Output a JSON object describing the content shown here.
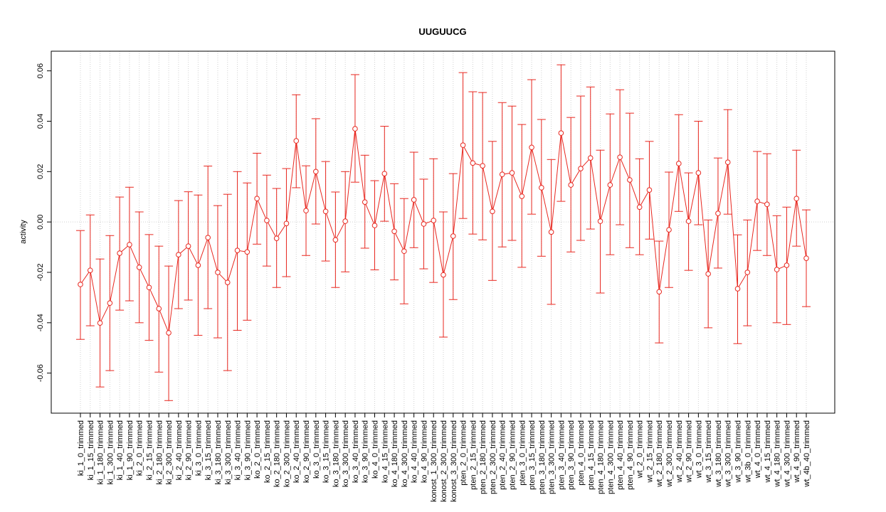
{
  "chart_data": {
    "type": "errorline",
    "title": "UUGUUCG",
    "y_label": "activity",
    "categories": [
      "ki_1_0_trimmed",
      "ki_1_15_trimmed",
      "ki_1_180_trimmed",
      "ki_1_300_trimmed",
      "ki_1_40_trimmed",
      "ki_1_90_trimmed",
      "ki_2_0_trimmed",
      "ki_2_15_trimmed",
      "ki_2_180_trimmed",
      "ki_2_300_trimmed",
      "ki_2_40_trimmed",
      "ki_2_90_trimmed",
      "ki_3_0_trimmed",
      "ki_3_15_trimmed",
      "ki_3_180_trimmed",
      "ki_3_300_trimmed",
      "ki_3_40_trimmed",
      "ki_3_90_trimmed",
      "ko_2_0_trimmed",
      "ko_2_15_trimmed",
      "ko_2_180_trimmed",
      "ko_2_300_trimmed",
      "ko_2_40_trimmed",
      "ko_2_90_trimmed",
      "ko_3_0_trimmed",
      "ko_3_15_trimmed",
      "ko_3_180_trimmed",
      "ko_3_300_trimmed",
      "ko_3_40_trimmed",
      "ko_3_90_trimmed",
      "ko_4_0_trimmed",
      "ko_4_15_trimmed",
      "ko_4_180_trimmed",
      "ko_4_300_trimmed",
      "ko_4_40_trimmed",
      "ko_4_90_trimmed",
      "konost_1_300_trimmed",
      "konost_2_300_trimmed",
      "konost_3_300_trimmed",
      "pten_2_0_trimmed",
      "pten_2_15_trimmed",
      "pten_2_180_trimmed",
      "pten_2_300_trimmed",
      "pten_2_40_trimmed",
      "pten_2_90_trimmed",
      "pten_3_0_trimmed",
      "pten_3_15_trimmed",
      "pten_3_180_trimmed",
      "pten_3_300_trimmed",
      "pten_3_40_trimmed",
      "pten_3_90_trimmed",
      "pten_4_0_trimmed",
      "pten_4_15_trimmed",
      "pten_4_180_trimmed",
      "pten_4_300_trimmed",
      "pten_4_40_trimmed",
      "pten_4_90_trimmed",
      "wt_2_0_trimmed",
      "wt_2_15_trimmed",
      "wt_2_180_trimmed",
      "wt_2_300_trimmed",
      "wt_2_40_trimmed",
      "wt_2_90_trimmed",
      "wt_3_0_trimmed",
      "wt_3_15_trimmed",
      "wt_3_180_trimmed",
      "wt_3_300_trimmed",
      "wt_3_90_trimmed",
      "wt_3b_0_trimmed",
      "wt_4_0_trimmed",
      "wt_4_15_trimmed",
      "wt_4_180_trimmed",
      "wt_4_300_trimmed",
      "wt_4_90_trimmed",
      "wt_4b_40_trimmed"
    ],
    "color": "#e8271f",
    "values": [
      -0.0248,
      -0.0192,
      -0.0401,
      -0.0322,
      -0.0124,
      -0.009,
      -0.018,
      -0.026,
      -0.0344,
      -0.044,
      -0.013,
      -0.0096,
      -0.0172,
      -0.0062,
      -0.02,
      -0.024,
      -0.0113,
      -0.0119,
      0.0093,
      0.0006,
      -0.0065,
      -0.0006,
      0.0322,
      0.0045,
      0.02,
      0.0042,
      -0.0071,
      0.0003,
      0.037,
      0.0079,
      -0.0014,
      0.0192,
      -0.0037,
      -0.0116,
      0.0088,
      -0.0008,
      0.0006,
      -0.021,
      -0.0056,
      0.0305,
      0.0234,
      0.0223,
      0.0042,
      0.0189,
      0.0195,
      0.0102,
      0.0296,
      0.0136,
      -0.004,
      0.0353,
      0.0147,
      0.0212,
      0.0254,
      0.0003,
      0.0147,
      0.0257,
      0.0167,
      0.0059,
      0.0127,
      -0.0277,
      -0.0031,
      0.0232,
      0.0003,
      0.0195,
      -0.0206,
      0.0034,
      0.0237,
      -0.0265,
      -0.02,
      0.0082,
      0.007,
      -0.0189,
      -0.0172,
      0.0093,
      -0.0144
    ],
    "upper": [
      -0.0034,
      0.0028,
      -0.0147,
      -0.0054,
      0.0099,
      0.0138,
      0.004,
      -0.005,
      -0.0096,
      -0.0175,
      0.0085,
      0.012,
      0.0107,
      0.0222,
      0.0065,
      0.011,
      0.02,
      0.0155,
      0.0273,
      0.0186,
      0.0133,
      0.0212,
      0.0505,
      0.0223,
      0.041,
      0.024,
      0.0119,
      0.02,
      0.0585,
      0.0265,
      0.0164,
      0.038,
      0.0152,
      0.0093,
      0.0277,
      0.017,
      0.0251,
      0.004,
      0.0192,
      0.0593,
      0.0517,
      0.0514,
      0.032,
      0.0474,
      0.046,
      0.0387,
      0.0565,
      0.0407,
      0.0248,
      0.0624,
      0.0415,
      0.05,
      0.0536,
      0.0285,
      0.0429,
      0.0525,
      0.0432,
      0.0251,
      0.032,
      -0.0076,
      0.0198,
      0.0426,
      0.0195,
      0.04,
      0.0008,
      0.0254,
      0.0446,
      -0.0051,
      0.0008,
      0.028,
      0.0271,
      0.0025,
      0.0059,
      0.0285,
      0.0048
    ],
    "lower": [
      -0.0466,
      -0.0412,
      -0.0655,
      -0.059,
      -0.035,
      -0.0313,
      -0.04,
      -0.047,
      -0.0596,
      -0.0709,
      -0.0344,
      -0.031,
      -0.045,
      -0.0344,
      -0.046,
      -0.059,
      -0.043,
      -0.039,
      -0.0088,
      -0.0175,
      -0.026,
      -0.0217,
      0.0136,
      -0.0133,
      -0.0008,
      -0.0155,
      -0.026,
      -0.0198,
      0.0158,
      -0.0104,
      -0.019,
      0.0003,
      -0.023,
      -0.0325,
      -0.0102,
      -0.0186,
      -0.024,
      -0.0457,
      -0.0308,
      0.0014,
      -0.0048,
      -0.0071,
      -0.0232,
      -0.0099,
      -0.0073,
      -0.018,
      0.0031,
      -0.0136,
      -0.0327,
      0.0082,
      -0.0119,
      -0.0073,
      -0.0028,
      -0.0282,
      -0.013,
      -0.0011,
      -0.0102,
      -0.013,
      -0.0068,
      -0.048,
      -0.026,
      0.0042,
      -0.0192,
      -0.0011,
      -0.042,
      -0.0183,
      0.0031,
      -0.0483,
      -0.0412,
      -0.0113,
      -0.0133,
      -0.04,
      -0.0407,
      -0.0096,
      -0.0336
    ],
    "ylim": [
      -0.0759,
      0.0678
    ],
    "yticks": [
      -0.06,
      -0.04,
      -0.02,
      {
        "value": 0,
        "label": "0.00"
      },
      0.02,
      0.04,
      0.06
    ],
    "grid": true,
    "reference_line": 0
  }
}
